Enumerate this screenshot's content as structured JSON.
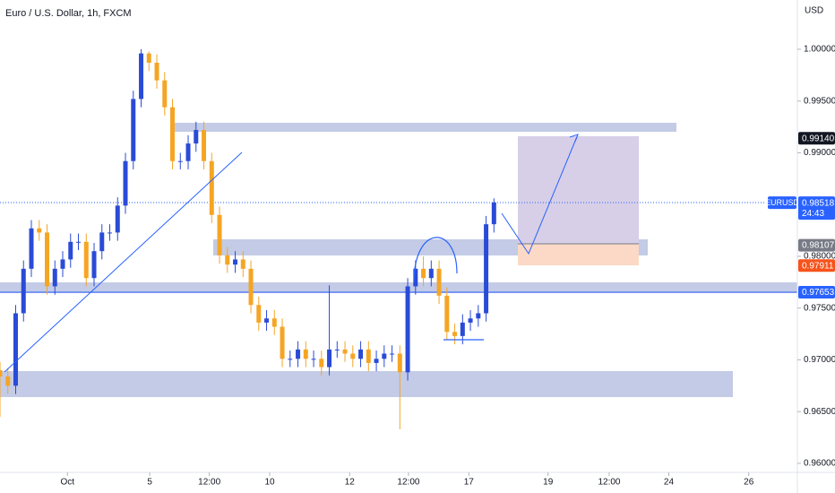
{
  "chart_data": {
    "type": "candlestick",
    "title": "Euro / U.S. Dollar, 1h, FXCM",
    "currency": "USD",
    "x": [
      0,
      1,
      2,
      3,
      4,
      5,
      6,
      7,
      8,
      9,
      10,
      11,
      12,
      13,
      14,
      15,
      16,
      17,
      18,
      19,
      20,
      21,
      22,
      23,
      24,
      25,
      26,
      27,
      28,
      29,
      30,
      31,
      32,
      33,
      34,
      35,
      36,
      37,
      38,
      39,
      40,
      41,
      42,
      43,
      44,
      45,
      46,
      47,
      48,
      49,
      50,
      51,
      52,
      53,
      54,
      55,
      56,
      57,
      58,
      59,
      60,
      61,
      62,
      63
    ],
    "open": [
      0.969,
      0.9684,
      0.9675,
      0.9745,
      0.9788,
      0.9827,
      0.9823,
      0.9771,
      0.9788,
      0.9797,
      0.9814,
      0.9814,
      0.9779,
      0.9805,
      0.9823,
      0.9823,
      0.9849,
      0.9892,
      0.9952,
      0.9996,
      0.9987,
      0.997,
      0.9944,
      0.9892,
      0.9892,
      0.9909,
      0.9922,
      0.9892,
      0.984,
      0.9801,
      0.9792,
      0.9797,
      0.9788,
      0.9753,
      0.9736,
      0.974,
      0.9732,
      0.9701,
      0.9701,
      0.971,
      0.9701,
      0.9701,
      0.9693,
      0.971,
      0.971,
      0.9706,
      0.9701,
      0.971,
      0.9697,
      0.9701,
      0.9706,
      0.9706,
      0.9688,
      0.9771,
      0.9788,
      0.9779,
      0.9788,
      0.9762,
      0.9727,
      0.9723,
      0.9736,
      0.974,
      0.9745,
      0.9831
    ],
    "high": [
      0.9698,
      0.9692,
      0.9753,
      0.9796,
      0.9835,
      0.9835,
      0.9831,
      0.9796,
      0.9805,
      0.9822,
      0.9822,
      0.9822,
      0.9813,
      0.9831,
      0.9831,
      0.9857,
      0.99,
      0.996,
      1.0,
      0.9998,
      0.9995,
      0.9978,
      0.9952,
      0.99,
      0.9917,
      0.993,
      0.993,
      0.99,
      0.9848,
      0.9809,
      0.9805,
      0.9805,
      0.9796,
      0.9761,
      0.9748,
      0.9748,
      0.974,
      0.9709,
      0.9718,
      0.9718,
      0.9709,
      0.9709,
      0.9772,
      0.9718,
      0.9718,
      0.9714,
      0.9718,
      0.9718,
      0.9709,
      0.9714,
      0.9714,
      0.9714,
      0.9779,
      0.9796,
      0.98,
      0.9796,
      0.9796,
      0.977,
      0.9735,
      0.9744,
      0.9748,
      0.9753,
      0.9839,
      0.9856
    ],
    "low": [
      0.9645,
      0.9667,
      0.9667,
      0.9737,
      0.978,
      0.9815,
      0.9763,
      0.9763,
      0.978,
      0.9789,
      0.9806,
      0.9771,
      0.9771,
      0.9797,
      0.9815,
      0.9815,
      0.9841,
      0.9884,
      0.9944,
      0.9979,
      0.9962,
      0.9936,
      0.9884,
      0.9884,
      0.9884,
      0.9901,
      0.9884,
      0.9832,
      0.9793,
      0.9784,
      0.9784,
      0.978,
      0.9745,
      0.9728,
      0.9728,
      0.9724,
      0.9693,
      0.9693,
      0.9693,
      0.9693,
      0.9693,
      0.9685,
      0.9685,
      0.9702,
      0.9698,
      0.9693,
      0.9693,
      0.9689,
      0.9689,
      0.9693,
      0.9698,
      0.9633,
      0.968,
      0.9763,
      0.9771,
      0.9771,
      0.9754,
      0.9719,
      0.9715,
      0.9715,
      0.9728,
      0.9732,
      0.9737,
      0.9823
    ],
    "close": [
      0.9684,
      0.9675,
      0.9745,
      0.9788,
      0.9827,
      0.9823,
      0.9771,
      0.9788,
      0.9797,
      0.9814,
      0.9814,
      0.9779,
      0.9805,
      0.9823,
      0.9823,
      0.9849,
      0.9892,
      0.9952,
      0.9996,
      0.9987,
      0.997,
      0.9944,
      0.9892,
      0.9892,
      0.9909,
      0.9922,
      0.9892,
      0.984,
      0.9801,
      0.9792,
      0.9797,
      0.9788,
      0.9753,
      0.9736,
      0.974,
      0.9732,
      0.9701,
      0.9701,
      0.971,
      0.9701,
      0.9701,
      0.9693,
      0.971,
      0.971,
      0.9706,
      0.9701,
      0.971,
      0.9697,
      0.9701,
      0.9706,
      0.9706,
      0.9688,
      0.9771,
      0.9788,
      0.9779,
      0.9788,
      0.9762,
      0.9727,
      0.9723,
      0.9736,
      0.974,
      0.9745,
      0.9831,
      0.9852
    ],
    "up_color": "#2a4bd7",
    "down_color": "#f5a524",
    "xlim": [
      0,
      101.7
    ],
    "xticks": [
      {
        "value": 8.6,
        "label": "Oct"
      },
      {
        "value": 19.1,
        "label": "5"
      },
      {
        "value": 26.7,
        "label": "12:00"
      },
      {
        "value": 34.4,
        "label": "10"
      },
      {
        "value": 44.6,
        "label": "12"
      },
      {
        "value": 52.1,
        "label": "12:00"
      },
      {
        "value": 59.8,
        "label": "17"
      },
      {
        "value": 69.9,
        "label": "19"
      },
      {
        "value": 77.7,
        "label": "12:00"
      },
      {
        "value": 85.3,
        "label": "24"
      },
      {
        "value": 95.5,
        "label": "26"
      }
    ],
    "ylim": [
      0.95913,
      1.00476
    ],
    "yticks": [
      {
        "value": 0.96,
        "label": "0.96000"
      },
      {
        "value": 0.965,
        "label": "0.96500"
      },
      {
        "value": 0.97,
        "label": "0.97000"
      },
      {
        "value": 0.975,
        "label": "0.97500"
      },
      {
        "value": 0.98,
        "label": "0.98000"
      },
      {
        "value": 0.985,
        "label": "0.98500"
      },
      {
        "value": 0.99,
        "label": "0.99000"
      },
      {
        "value": 0.995,
        "label": "0.99500"
      },
      {
        "value": 1.0,
        "label": "1.00000"
      }
    ],
    "price_tags": [
      {
        "value": 0.9914,
        "label": "0.99140",
        "color": "#131722"
      },
      {
        "value": 0.98107,
        "label": "0.98107",
        "color": "#787b86"
      },
      {
        "value": 0.97911,
        "label": "0.97911",
        "color": "#f7531c"
      },
      {
        "value": 0.97653,
        "label": "0.97653",
        "color": "#2962ff"
      }
    ],
    "last_price": {
      "symbol": "EURUSD",
      "value": 0.98518,
      "label": "0.98518",
      "countdown": "24:43",
      "color": "#2962ff"
    }
  }
}
